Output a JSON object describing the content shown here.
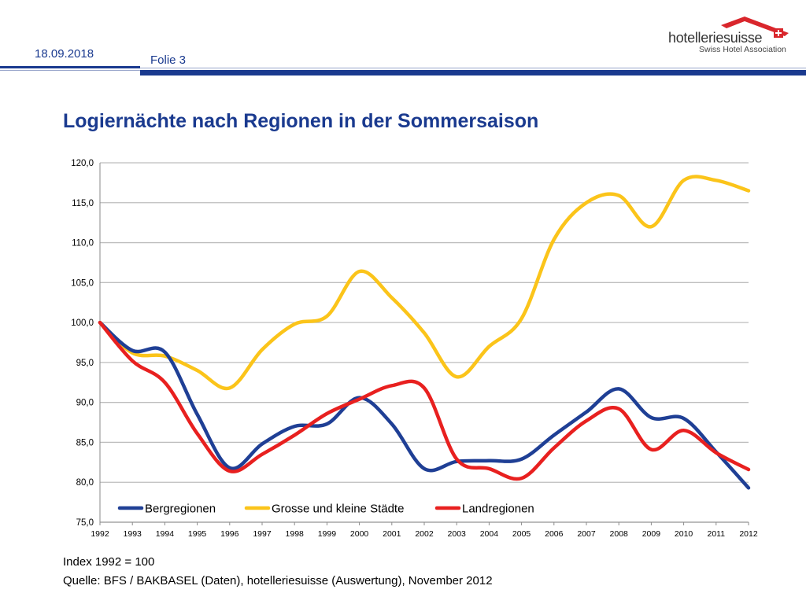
{
  "header": {
    "date": "18.09.2018",
    "slide_label": "Folie 3"
  },
  "logo": {
    "name": "hotelleriesuisse",
    "tagline": "Swiss Hotel Association"
  },
  "title": "Logiernächte nach Regionen in der Sommersaison",
  "footer": {
    "note": "Index 1992 = 100",
    "source": "Quelle: BFS / BAKBASEL (Daten), hotelleriesuisse (Auswertung), November 2012"
  },
  "colors": {
    "brand_blue": "#1a3a8f",
    "logo_red": "#d9262c",
    "grid": "#bdbdbd"
  },
  "chart_data": {
    "type": "line",
    "title": "",
    "xlabel": "",
    "ylabel": "",
    "ylim": [
      75,
      120
    ],
    "y_ticks": [
      "120,0",
      "115,0",
      "110,0",
      "105,0",
      "100,0",
      "95,0",
      "90,0",
      "85,0",
      "80,0",
      "75,0"
    ],
    "y_tick_values": [
      120,
      115,
      110,
      105,
      100,
      95,
      90,
      85,
      80,
      75
    ],
    "grid": true,
    "legend_position": "bottom-inside",
    "smooth": true,
    "categories": [
      "1992",
      "1993",
      "1994",
      "1995",
      "1996",
      "1997",
      "1998",
      "1999",
      "2000",
      "2001",
      "2002",
      "2003",
      "2004",
      "2005",
      "2006",
      "2007",
      "2008",
      "2009",
      "2010",
      "2011",
      "2012"
    ],
    "series": [
      {
        "name": "Bergregionen",
        "color": "#1f3f95",
        "values": [
          100.0,
          96.5,
          96.3,
          88.5,
          81.8,
          84.8,
          87.0,
          87.3,
          90.6,
          87.3,
          81.7,
          82.6,
          82.7,
          82.9,
          85.9,
          88.8,
          91.7,
          88.1,
          88.0,
          83.8,
          79.3
        ]
      },
      {
        "name": "Grosse und kleine Städte",
        "color": "#fbc41a",
        "values": [
          100.0,
          96.2,
          95.8,
          94.0,
          91.8,
          96.6,
          99.8,
          100.8,
          106.4,
          103.1,
          98.7,
          93.2,
          97.0,
          100.5,
          110.4,
          115.0,
          115.9,
          112.0,
          117.8,
          117.8,
          116.5
        ]
      },
      {
        "name": "Landregionen",
        "color": "#e8201f",
        "values": [
          100.0,
          95.2,
          92.5,
          86.1,
          81.4,
          83.5,
          85.9,
          88.6,
          90.4,
          92.1,
          91.8,
          82.9,
          81.7,
          80.5,
          84.3,
          87.7,
          89.2,
          84.1,
          86.5,
          83.7,
          81.6
        ]
      }
    ]
  }
}
